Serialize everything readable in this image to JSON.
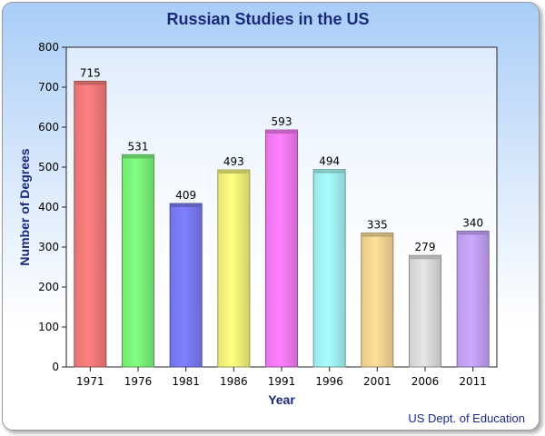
{
  "chart_data": {
    "type": "bar",
    "title": "Russian Studies in the US",
    "xlabel": "Year",
    "ylabel": "Number of Degrees",
    "categories": [
      "1971",
      "1976",
      "1981",
      "1986",
      "1991",
      "1996",
      "2001",
      "2006",
      "2011"
    ],
    "values": [
      715,
      531,
      409,
      493,
      593,
      494,
      335,
      279,
      340
    ],
    "ylim": [
      0,
      800
    ],
    "yticks": [
      0,
      100,
      200,
      300,
      400,
      500,
      600,
      700,
      800
    ],
    "bar_colors": [
      "#ff8080",
      "#80ff80",
      "#8080ff",
      "#ffff80",
      "#ff80ff",
      "#aaffff",
      "#ffe099",
      "#e6e6e6",
      "#ccaaff"
    ],
    "grid": false,
    "legend": "none",
    "source": "US Dept. of Education"
  }
}
